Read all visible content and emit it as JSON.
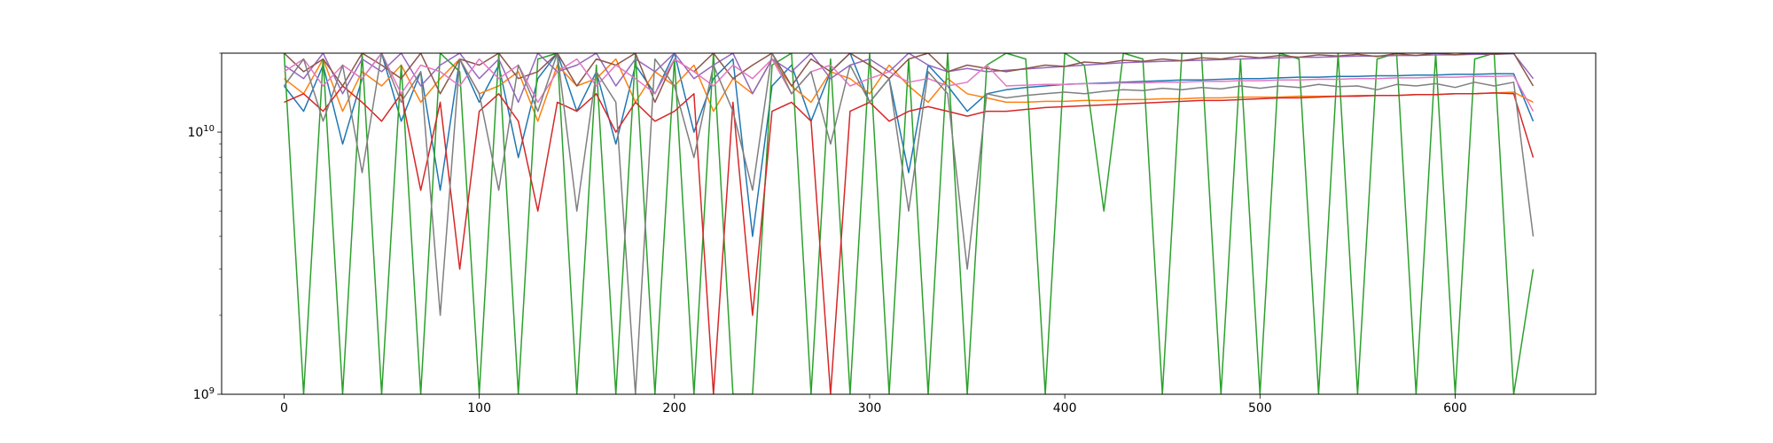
{
  "chart_data": {
    "type": "line",
    "title": "",
    "xlabel": "",
    "ylabel": "",
    "xlim": [
      -32,
      672
    ],
    "ylim": [
      1000000000.0,
      20000000000.0
    ],
    "yscale": "log",
    "grid": false,
    "legend": "none",
    "x_ticks": [
      0,
      100,
      200,
      300,
      400,
      500,
      600
    ],
    "y_ticks": [
      {
        "value": 1000000000.0,
        "base": "10",
        "exp": "9"
      },
      {
        "value": 10000000000.0,
        "base": "10",
        "exp": "10"
      }
    ],
    "x": [
      0,
      10,
      20,
      30,
      40,
      50,
      60,
      70,
      80,
      90,
      100,
      110,
      120,
      130,
      140,
      150,
      160,
      170,
      180,
      190,
      200,
      210,
      220,
      230,
      240,
      250,
      260,
      270,
      280,
      290,
      300,
      310,
      320,
      330,
      340,
      350,
      360,
      370,
      380,
      390,
      400,
      410,
      420,
      430,
      440,
      450,
      460,
      470,
      480,
      490,
      500,
      510,
      520,
      530,
      540,
      550,
      560,
      570,
      580,
      590,
      600,
      610,
      620,
      630,
      640
    ],
    "series": [
      {
        "color": "#1f77b4",
        "values": [
          15000000000.0,
          12000000000.0,
          18000000000.0,
          9000000000.0,
          16000000000.0,
          20000000000.0,
          11000000000.0,
          17000000000.0,
          6000000000.0,
          19000000000.0,
          13000000000.0,
          18000000000.0,
          8000000000.0,
          16000000000.0,
          20000000000.0,
          12000000000.0,
          17000000000.0,
          9000000000.0,
          18000000000.0,
          14000000000.0,
          20000000000.0,
          10000000000.0,
          16000000000.0,
          19000000000.0,
          4000000000.0,
          15000000000.0,
          18000000000.0,
          11000000000.0,
          17000000000.0,
          20000000000.0,
          13000000000.0,
          16000000000.0,
          7000000000.0,
          18000000000.0,
          15000000000.0,
          12000000000.0,
          14000000000.0,
          14500000000.0,
          14800000000.0,
          15000000000.0,
          15200000000.0,
          15300000000.0,
          15400000000.0,
          15500000000.0,
          15600000000.0,
          15700000000.0,
          15800000000.0,
          15800000000.0,
          15900000000.0,
          16000000000.0,
          16000000000.0,
          16100000000.0,
          16200000000.0,
          16200000000.0,
          16300000000.0,
          16300000000.0,
          16400000000.0,
          16400000000.0,
          16500000000.0,
          16500000000.0,
          16600000000.0,
          16600000000.0,
          16700000000.0,
          16700000000.0,
          11000000000.0
        ]
      },
      {
        "color": "#ff7f0e",
        "values": [
          16000000000.0,
          14000000000.0,
          19000000000.0,
          12000000000.0,
          17000000000.0,
          15000000000.0,
          18000000000.0,
          13000000000.0,
          16000000000.0,
          19000000000.0,
          14000000000.0,
          15000000000.0,
          17000000000.0,
          11000000000.0,
          18000000000.0,
          15000000000.0,
          16000000000.0,
          19000000000.0,
          13000000000.0,
          17000000000.0,
          15000000000.0,
          18000000000.0,
          12000000000.0,
          16000000000.0,
          14000000000.0,
          19000000000.0,
          15000000000.0,
          13000000000.0,
          17000000000.0,
          16000000000.0,
          14000000000.0,
          18000000000.0,
          15000000000.0,
          13000000000.0,
          16000000000.0,
          14000000000.0,
          13500000000.0,
          13000000000.0,
          13000000000.0,
          13100000000.0,
          13100000000.0,
          13200000000.0,
          13200000000.0,
          13300000000.0,
          13300000000.0,
          13400000000.0,
          13400000000.0,
          13500000000.0,
          13500000000.0,
          13600000000.0,
          13600000000.0,
          13600000000.0,
          13700000000.0,
          13700000000.0,
          13700000000.0,
          13800000000.0,
          13800000000.0,
          13800000000.0,
          13900000000.0,
          13900000000.0,
          14000000000.0,
          14000000000.0,
          14100000000.0,
          14200000000.0,
          13000000000.0
        ]
      },
      {
        "color": "#2ca02c",
        "values": [
          20000000000.0,
          500000000.0,
          19000000000.0,
          800000000.0,
          20000000000.0,
          1000000000.0,
          18000000000.0,
          500000000.0,
          20000000000.0,
          17000000000.0,
          600000000.0,
          20000000000.0,
          500000000.0,
          19000000000.0,
          20000000000.0,
          400000000.0,
          18000000000.0,
          500000000.0,
          20000000000.0,
          700000000.0,
          19000000000.0,
          500000000.0,
          20000000000.0,
          600000000.0,
          500000000.0,
          18000000000.0,
          20000000000.0,
          500000000.0,
          19000000000.0,
          600000000.0,
          20000000000.0,
          800000000.0,
          19000000000.0,
          500000000.0,
          20000000000.0,
          700000000.0,
          18000000000.0,
          20000000000.0,
          19000000000.0,
          500000000.0,
          20000000000.0,
          18000000000.0,
          5000000000.0,
          20000000000.0,
          19000000000.0,
          500000000.0,
          20000000000.0,
          20000000000.0,
          500000000.0,
          19000000000.0,
          600000000.0,
          20000000000.0,
          19000000000.0,
          500000000.0,
          20000000000.0,
          800000000.0,
          19000000000.0,
          20000000000.0,
          500000000.0,
          20000000000.0,
          500000000.0,
          19000000000.0,
          20000000000.0,
          1000000000.0,
          3000000000.0
        ]
      },
      {
        "color": "#d62728",
        "values": [
          13000000000.0,
          14000000000.0,
          12000000000.0,
          15000000000.0,
          13000000000.0,
          11000000000.0,
          14000000000.0,
          6000000000.0,
          13000000000.0,
          3000000000.0,
          12000000000.0,
          14000000000.0,
          11000000000.0,
          5000000000.0,
          13000000000.0,
          12000000000.0,
          14000000000.0,
          10000000000.0,
          13000000000.0,
          11000000000.0,
          12000000000.0,
          14000000000.0,
          1000000000.0,
          13000000000.0,
          2000000000.0,
          12000000000.0,
          13000000000.0,
          11000000000.0,
          800000000.0,
          12000000000.0,
          13000000000.0,
          11000000000.0,
          12000000000.0,
          12500000000.0,
          12000000000.0,
          11500000000.0,
          12000000000.0,
          12000000000.0,
          12200000000.0,
          12400000000.0,
          12500000000.0,
          12600000000.0,
          12700000000.0,
          12800000000.0,
          12900000000.0,
          13000000000.0,
          13100000000.0,
          13200000000.0,
          13200000000.0,
          13300000000.0,
          13400000000.0,
          13500000000.0,
          13500000000.0,
          13600000000.0,
          13700000000.0,
          13700000000.0,
          13800000000.0,
          13800000000.0,
          13900000000.0,
          13900000000.0,
          14000000000.0,
          14000000000.0,
          14100000000.0,
          14000000000.0,
          8000000000.0
        ]
      },
      {
        "color": "#9467bd",
        "values": [
          18000000000.0,
          16000000000.0,
          20000000000.0,
          14000000000.0,
          19000000000.0,
          17000000000.0,
          20000000000.0,
          15000000000.0,
          18000000000.0,
          20000000000.0,
          16000000000.0,
          19000000000.0,
          13000000000.0,
          20000000000.0,
          17000000000.0,
          18000000000.0,
          20000000000.0,
          15000000000.0,
          19000000000.0,
          17000000000.0,
          20000000000.0,
          16000000000.0,
          18000000000.0,
          20000000000.0,
          14000000000.0,
          19000000000.0,
          17000000000.0,
          20000000000.0,
          16000000000.0,
          18000000000.0,
          19000000000.0,
          17000000000.0,
          20000000000.0,
          18000000000.0,
          17000000000.0,
          17500000000.0,
          17000000000.0,
          17200000000.0,
          17400000000.0,
          17600000000.0,
          17800000000.0,
          18000000000.0,
          18200000000.0,
          18400000000.0,
          18500000000.0,
          18600000000.0,
          18700000000.0,
          18800000000.0,
          18900000000.0,
          19000000000.0,
          19100000000.0,
          19200000000.0,
          19300000000.0,
          19300000000.0,
          19400000000.0,
          19500000000.0,
          19500000000.0,
          19600000000.0,
          19600000000.0,
          19700000000.0,
          19700000000.0,
          19800000000.0,
          19800000000.0,
          19900000000.0,
          16000000000.0
        ]
      },
      {
        "color": "#8c564b",
        "values": [
          20000000000.0,
          17000000000.0,
          19000000000.0,
          15000000000.0,
          20000000000.0,
          18000000000.0,
          16000000000.0,
          20000000000.0,
          14000000000.0,
          19000000000.0,
          18000000000.0,
          20000000000.0,
          16000000000.0,
          17000000000.0,
          20000000000.0,
          15000000000.0,
          19000000000.0,
          18000000000.0,
          20000000000.0,
          13000000000.0,
          19000000000.0,
          17000000000.0,
          20000000000.0,
          16000000000.0,
          18000000000.0,
          20000000000.0,
          15000000000.0,
          19000000000.0,
          17000000000.0,
          20000000000.0,
          18000000000.0,
          16000000000.0,
          19000000000.0,
          20000000000.0,
          17000000000.0,
          18000000000.0,
          17500000000.0,
          17000000000.0,
          17500000000.0,
          18000000000.0,
          17800000000.0,
          18500000000.0,
          18300000000.0,
          18800000000.0,
          18600000000.0,
          19000000000.0,
          18700000000.0,
          19200000000.0,
          19000000000.0,
          19500000000.0,
          19200000000.0,
          19600000000.0,
          19300000000.0,
          19700000000.0,
          19500000000.0,
          19800000000.0,
          19400000000.0,
          19900000000.0,
          19600000000.0,
          20000000000.0,
          19700000000.0,
          20000000000.0,
          19800000000.0,
          20000000000.0,
          15000000000.0
        ]
      },
      {
        "color": "#e377c2",
        "values": [
          17000000000.0,
          19000000000.0,
          15000000000.0,
          18000000000.0,
          16000000000.0,
          20000000000.0,
          14000000000.0,
          18000000000.0,
          17000000000.0,
          15000000000.0,
          19000000000.0,
          16000000000.0,
          18000000000.0,
          13000000000.0,
          17000000000.0,
          19000000000.0,
          15000000000.0,
          18000000000.0,
          16000000000.0,
          14000000000.0,
          19000000000.0,
          17000000000.0,
          15000000000.0,
          18000000000.0,
          16000000000.0,
          19000000000.0,
          14000000000.0,
          17000000000.0,
          18000000000.0,
          15000000000.0,
          16000000000.0,
          17000000000.0,
          15500000000.0,
          16000000000.0,
          15000000000.0,
          15500000000.0,
          18000000000.0,
          15000000000.0,
          15100000000.0,
          15200000000.0,
          15200000000.0,
          15300000000.0,
          15300000000.0,
          15400000000.0,
          15400000000.0,
          15500000000.0,
          15500000000.0,
          15600000000.0,
          15600000000.0,
          15700000000.0,
          15700000000.0,
          15800000000.0,
          15800000000.0,
          15900000000.0,
          15900000000.0,
          16000000000.0,
          16000000000.0,
          16100000000.0,
          16100000000.0,
          16200000000.0,
          16200000000.0,
          16300000000.0,
          16300000000.0,
          16400000000.0,
          12000000000.0
        ]
      },
      {
        "color": "#7f7f7f",
        "values": [
          15000000000.0,
          19000000000.0,
          11000000000.0,
          18000000000.0,
          7000000000.0,
          20000000000.0,
          13000000000.0,
          17000000000.0,
          2000000000.0,
          19000000000.0,
          14000000000.0,
          6000000000.0,
          18000000000.0,
          12000000000.0,
          20000000000.0,
          5000000000.0,
          17000000000.0,
          13000000000.0,
          1000000000.0,
          19000000000.0,
          15000000000.0,
          8000000000.0,
          18000000000.0,
          12000000000.0,
          6000000000.0,
          20000000000.0,
          14000000000.0,
          17000000000.0,
          9000000000.0,
          18000000000.0,
          13000000000.0,
          16000000000.0,
          5000000000.0,
          17000000000.0,
          14000000000.0,
          3000000000.0,
          14000000000.0,
          13500000000.0,
          13800000000.0,
          14000000000.0,
          14200000000.0,
          14000000000.0,
          14300000000.0,
          14500000000.0,
          14400000000.0,
          14700000000.0,
          14500000000.0,
          14800000000.0,
          14600000000.0,
          15000000000.0,
          14700000000.0,
          15000000000.0,
          14800000000.0,
          15200000000.0,
          14900000000.0,
          15000000000.0,
          14500000000.0,
          15200000000.0,
          15000000000.0,
          15300000000.0,
          14800000000.0,
          15500000000.0,
          15000000000.0,
          15500000000.0,
          4000000000.0
        ]
      }
    ]
  }
}
